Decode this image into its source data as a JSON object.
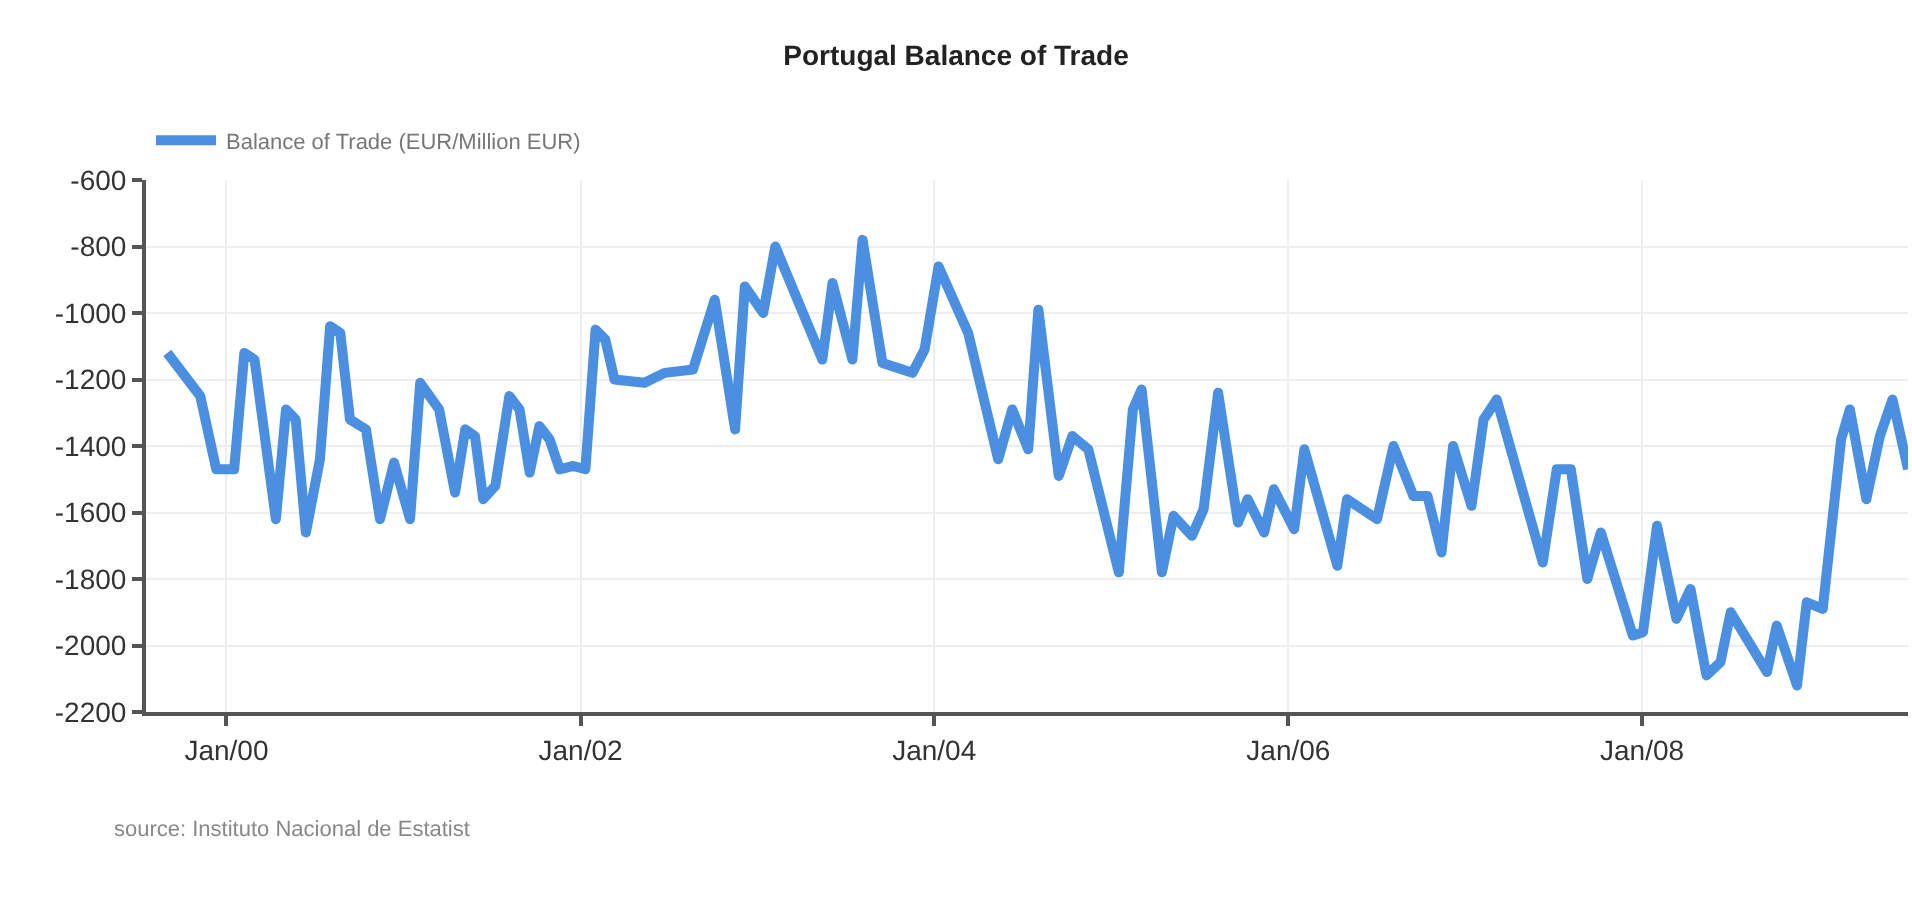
{
  "chart_data": {
    "type": "line",
    "title": "Portugal Balance of Trade",
    "x": [
      "1999-09-01",
      "1999-11-08",
      "1999-12-11",
      "2000-01-17",
      "2000-02-07",
      "2000-02-28",
      "2000-04-12",
      "2000-05-03",
      "2000-05-23",
      "2000-06-13",
      "2000-07-12",
      "2000-08-02",
      "2000-08-23",
      "2000-09-12",
      "2000-10-15",
      "2000-11-13",
      "2000-12-12",
      "2001-01-14",
      "2001-02-04",
      "2001-03-15",
      "2001-04-17",
      "2001-05-08",
      "2001-05-28",
      "2001-06-14",
      "2001-07-09",
      "2001-08-07",
      "2001-08-28",
      "2001-09-18",
      "2001-10-08",
      "2001-10-29",
      "2001-11-19",
      "2001-12-17",
      "2002-01-11",
      "2002-02-01",
      "2002-02-21",
      "2002-03-12",
      "2002-05-13",
      "2002-06-24",
      "2002-08-21",
      "2002-10-05",
      "2002-11-16",
      "2002-12-06",
      "2003-01-13",
      "2003-02-07",
      "2003-05-15",
      "2003-06-05",
      "2003-07-16",
      "2003-08-06",
      "2003-09-16",
      "2003-11-17",
      "2003-12-12",
      "2004-01-10",
      "2004-03-11",
      "2004-05-12",
      "2004-06-10",
      "2004-07-13",
      "2004-08-03",
      "2004-09-14",
      "2004-10-12",
      "2004-11-14",
      "2005-01-16",
      "2005-02-14",
      "2005-03-04",
      "2005-04-15",
      "2005-05-09",
      "2005-06-16",
      "2005-07-10",
      "2005-08-09",
      "2005-09-19",
      "2005-10-09",
      "2005-11-12",
      "2005-12-02",
      "2006-01-13",
      "2006-02-03",
      "2006-04-12",
      "2006-05-02",
      "2006-07-03",
      "2006-08-06",
      "2006-09-16",
      "2006-10-15",
      "2006-11-13",
      "2006-12-07",
      "2007-01-14",
      "2007-02-08",
      "2007-03-07",
      "2007-06-10",
      "2007-07-09",
      "2007-08-07",
      "2007-09-10",
      "2007-10-08",
      "2007-12-13",
      "2008-01-03",
      "2008-02-01",
      "2008-03-12",
      "2008-04-10",
      "2008-05-13",
      "2008-06-11",
      "2008-07-02",
      "2008-09-15",
      "2008-10-05",
      "2008-11-16",
      "2008-12-06",
      "2009-01-08",
      "2009-02-15",
      "2009-03-05",
      "2009-04-08",
      "2009-05-06",
      "2009-06-01",
      "2009-07-03"
    ],
    "series": [
      {
        "name": "Balance of Trade (EUR/Million EUR)",
        "color": "#4a8fe0",
        "values": [
          -1120,
          -1250,
          -1470,
          -1470,
          -1120,
          -1140,
          -1620,
          -1290,
          -1320,
          -1660,
          -1440,
          -1040,
          -1060,
          -1320,
          -1350,
          -1620,
          -1450,
          -1620,
          -1210,
          -1290,
          -1540,
          -1350,
          -1370,
          -1560,
          -1520,
          -1250,
          -1290,
          -1480,
          -1340,
          -1380,
          -1470,
          -1460,
          -1470,
          -1050,
          -1080,
          -1200,
          -1210,
          -1180,
          -1170,
          -960,
          -1350,
          -920,
          -1000,
          -800,
          -1140,
          -910,
          -1140,
          -780,
          -1150,
          -1180,
          -1110,
          -860,
          -1060,
          -1440,
          -1290,
          -1410,
          -990,
          -1490,
          -1370,
          -1410,
          -1780,
          -1290,
          -1230,
          -1780,
          -1610,
          -1670,
          -1590,
          -1240,
          -1630,
          -1560,
          -1660,
          -1530,
          -1650,
          -1410,
          -1760,
          -1560,
          -1620,
          -1400,
          -1550,
          -1550,
          -1720,
          -1400,
          -1580,
          -1320,
          -1260,
          -1750,
          -1470,
          -1470,
          -1800,
          -1660,
          -1970,
          -1960,
          -1640,
          -1920,
          -1830,
          -2090,
          -2050,
          -1900,
          -2080,
          -1940,
          -2120,
          -1870,
          -1890,
          -1380,
          -1290,
          -1560,
          -1370,
          -1260,
          -1470
        ]
      }
    ],
    "xlim": [
      "1999-07-19",
      "2009-07-03"
    ],
    "xticks": [
      {
        "value": "2000-01-01",
        "label": "Jan/00"
      },
      {
        "value": "2002-01-01",
        "label": "Jan/02"
      },
      {
        "value": "2004-01-01",
        "label": "Jan/04"
      },
      {
        "value": "2006-01-01",
        "label": "Jan/06"
      },
      {
        "value": "2008-01-01",
        "label": "Jan/08"
      }
    ],
    "ylim": [
      -2200,
      -600
    ],
    "yticks": [
      -600,
      -800,
      -1000,
      -1200,
      -1400,
      -1600,
      -1800,
      -2000,
      -2200
    ],
    "grid": true,
    "legend": "top left",
    "marker": "none",
    "line_style": "solid",
    "annotations": [
      "source: Instituto Nacional de Estatist"
    ]
  }
}
